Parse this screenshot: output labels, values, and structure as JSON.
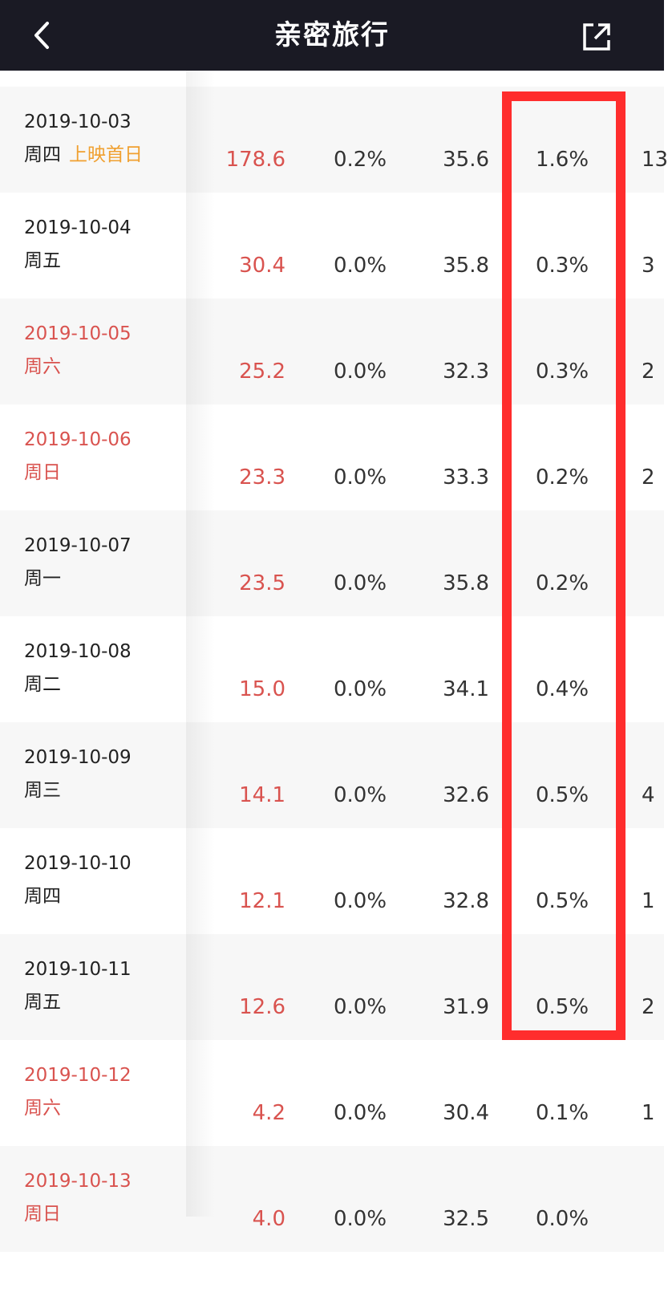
{
  "nav": {
    "title": "亲密旅行",
    "back_icon": "chevron-left-icon",
    "share_icon": "share-external-icon",
    "bg": "#1a1a24"
  },
  "colors": {
    "red": "#d9534f",
    "orange_tag": "#f0a030",
    "highlight_border": "#ff2d2d"
  },
  "rows": [
    {
      "date": "2019-10-03",
      "weekday": "周四",
      "tag": "上映首日",
      "weekend": false,
      "box": "178.6",
      "share": "0.2%",
      "price": "35.6",
      "ratio": "1.6%",
      "extra": "13"
    },
    {
      "date": "2019-10-04",
      "weekday": "周五",
      "tag": "",
      "weekend": false,
      "box": "30.4",
      "share": "0.0%",
      "price": "35.8",
      "ratio": "0.3%",
      "extra": "3"
    },
    {
      "date": "2019-10-05",
      "weekday": "周六",
      "tag": "",
      "weekend": true,
      "box": "25.2",
      "share": "0.0%",
      "price": "32.3",
      "ratio": "0.3%",
      "extra": "2"
    },
    {
      "date": "2019-10-06",
      "weekday": "周日",
      "tag": "",
      "weekend": true,
      "box": "23.3",
      "share": "0.0%",
      "price": "33.3",
      "ratio": "0.2%",
      "extra": "2"
    },
    {
      "date": "2019-10-07",
      "weekday": "周一",
      "tag": "",
      "weekend": false,
      "box": "23.5",
      "share": "0.0%",
      "price": "35.8",
      "ratio": "0.2%",
      "extra": ""
    },
    {
      "date": "2019-10-08",
      "weekday": "周二",
      "tag": "",
      "weekend": false,
      "box": "15.0",
      "share": "0.0%",
      "price": "34.1",
      "ratio": "0.4%",
      "extra": ""
    },
    {
      "date": "2019-10-09",
      "weekday": "周三",
      "tag": "",
      "weekend": false,
      "box": "14.1",
      "share": "0.0%",
      "price": "32.6",
      "ratio": "0.5%",
      "extra": "4"
    },
    {
      "date": "2019-10-10",
      "weekday": "周四",
      "tag": "",
      "weekend": false,
      "box": "12.1",
      "share": "0.0%",
      "price": "32.8",
      "ratio": "0.5%",
      "extra": "1"
    },
    {
      "date": "2019-10-11",
      "weekday": "周五",
      "tag": "",
      "weekend": false,
      "box": "12.6",
      "share": "0.0%",
      "price": "31.9",
      "ratio": "0.5%",
      "extra": "2"
    },
    {
      "date": "2019-10-12",
      "weekday": "周六",
      "tag": "",
      "weekend": true,
      "box": "4.2",
      "share": "0.0%",
      "price": "30.4",
      "ratio": "0.1%",
      "extra": "1"
    },
    {
      "date": "2019-10-13",
      "weekday": "周日",
      "tag": "",
      "weekend": true,
      "box": "4.0",
      "share": "0.0%",
      "price": "32.5",
      "ratio": "0.0%",
      "extra": ""
    }
  ]
}
